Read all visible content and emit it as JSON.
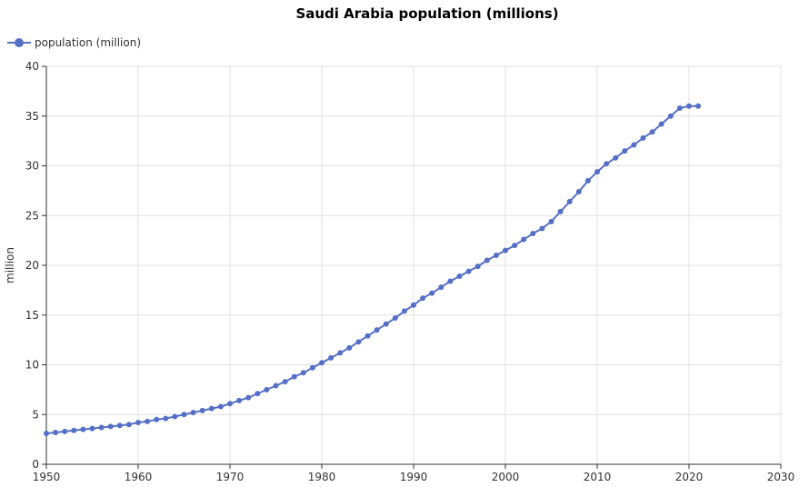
{
  "chart_data": {
    "type": "line",
    "title": "Saudi Arabia population (millions)",
    "xlabel": "",
    "ylabel": "million",
    "xlim": [
      1950,
      2030
    ],
    "ylim": [
      0,
      40
    ],
    "x_ticks": [
      1950,
      1960,
      1970,
      1980,
      1990,
      2000,
      2010,
      2020,
      2030
    ],
    "y_ticks": [
      0,
      5,
      10,
      15,
      20,
      25,
      30,
      35,
      40
    ],
    "grid": true,
    "legend_position": "top-left",
    "series": [
      {
        "name": "population (million)",
        "color": "#5470c6",
        "x": [
          1950,
          1951,
          1952,
          1953,
          1954,
          1955,
          1956,
          1957,
          1958,
          1959,
          1960,
          1961,
          1962,
          1963,
          1964,
          1965,
          1966,
          1967,
          1968,
          1969,
          1970,
          1971,
          1972,
          1973,
          1974,
          1975,
          1976,
          1977,
          1978,
          1979,
          1980,
          1981,
          1982,
          1983,
          1984,
          1985,
          1986,
          1987,
          1988,
          1989,
          1990,
          1991,
          1992,
          1993,
          1994,
          1995,
          1996,
          1997,
          1998,
          1999,
          2000,
          2001,
          2002,
          2003,
          2004,
          2005,
          2006,
          2007,
          2008,
          2009,
          2010,
          2011,
          2012,
          2013,
          2014,
          2015,
          2016,
          2017,
          2018,
          2019,
          2020,
          2021
        ],
        "values": [
          3.1,
          3.2,
          3.3,
          3.4,
          3.5,
          3.6,
          3.7,
          3.8,
          3.9,
          4.0,
          4.2,
          4.3,
          4.5,
          4.6,
          4.8,
          5.0,
          5.2,
          5.4,
          5.6,
          5.8,
          6.1,
          6.4,
          6.7,
          7.1,
          7.5,
          7.9,
          8.3,
          8.8,
          9.2,
          9.7,
          10.2,
          10.7,
          11.2,
          11.7,
          12.3,
          12.9,
          13.5,
          14.1,
          14.7,
          15.4,
          16.0,
          16.7,
          17.2,
          17.8,
          18.4,
          18.9,
          19.4,
          19.9,
          20.5,
          21.0,
          21.5,
          22.0,
          22.6,
          23.2,
          23.7,
          24.4,
          25.4,
          26.4,
          27.4,
          28.5,
          29.4,
          30.2,
          30.8,
          31.5,
          32.1,
          32.8,
          33.4,
          34.2,
          35.0,
          35.8,
          36.0,
          36.0
        ]
      }
    ]
  }
}
